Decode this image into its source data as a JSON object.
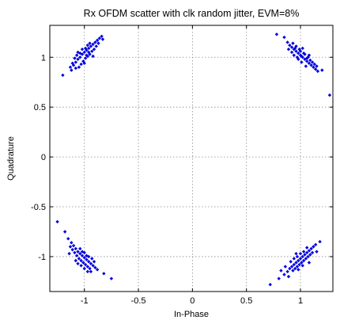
{
  "chart_data": {
    "type": "scatter",
    "title": "Rx OFDM scatter with clk random jitter, EVM=8%",
    "xlabel": "In-Phase",
    "ylabel": "Quadrature",
    "xlim": [
      -1.32,
      1.3
    ],
    "ylim": [
      -1.35,
      1.32
    ],
    "xticks": [
      -1,
      -0.5,
      0,
      0.5,
      1
    ],
    "xtick_labels": [
      "-1",
      "-0.5",
      "0",
      "0.5",
      "1"
    ],
    "yticks": [
      -1,
      -0.5,
      0,
      0.5,
      1
    ],
    "ytick_labels": [
      "-1",
      "-0.5",
      "0",
      "0.5",
      "1"
    ],
    "grid": true,
    "marker_color": "#0000e0",
    "series": [
      {
        "points": [
          [
            -1.2,
            0.82
          ],
          [
            -1.12,
            0.87
          ],
          [
            -1.1,
            0.92
          ],
          [
            -1.08,
            0.95
          ],
          [
            -1.06,
            0.98
          ],
          [
            -1.04,
            1.0
          ],
          [
            -1.02,
            1.03
          ],
          [
            -1.0,
            1.05
          ],
          [
            -0.98,
            1.07
          ],
          [
            -0.96,
            1.09
          ],
          [
            -0.94,
            1.11
          ],
          [
            -0.92,
            1.13
          ],
          [
            -0.9,
            1.15
          ],
          [
            -0.88,
            1.17
          ],
          [
            -0.86,
            1.19
          ],
          [
            -0.84,
            1.21
          ],
          [
            -0.83,
            1.18
          ],
          [
            -1.05,
            0.9
          ],
          [
            -1.03,
            0.93
          ],
          [
            -1.01,
            0.96
          ],
          [
            -0.99,
            0.99
          ],
          [
            -0.97,
            1.01
          ],
          [
            -0.95,
            1.03
          ],
          [
            -0.93,
            1.06
          ],
          [
            -1.09,
            0.99
          ],
          [
            -1.07,
            1.02
          ],
          [
            -1.02,
            1.08
          ],
          [
            -0.97,
            1.12
          ],
          [
            -0.91,
            1.08
          ],
          [
            -0.89,
            1.11
          ],
          [
            -1.11,
            0.94
          ],
          [
            -1.0,
            0.94
          ],
          [
            -0.98,
            1.02
          ],
          [
            -0.95,
            1.14
          ],
          [
            -0.87,
            1.14
          ],
          [
            -1.06,
            1.05
          ],
          [
            -1.04,
            1.04
          ],
          [
            -0.99,
            1.09
          ],
          [
            -0.96,
            1.05
          ],
          [
            -0.92,
            1.01
          ],
          [
            -1.08,
            0.89
          ],
          [
            -1.13,
            0.9
          ]
        ]
      },
      {
        "points": [
          [
            0.78,
            1.23
          ],
          [
            0.85,
            1.2
          ],
          [
            0.88,
            1.15
          ],
          [
            0.9,
            1.12
          ],
          [
            0.92,
            1.1
          ],
          [
            0.94,
            1.08
          ],
          [
            0.96,
            1.06
          ],
          [
            0.98,
            1.04
          ],
          [
            1.0,
            1.02
          ],
          [
            1.02,
            1.0
          ],
          [
            1.04,
            0.98
          ],
          [
            1.06,
            0.96
          ],
          [
            1.08,
            0.94
          ],
          [
            1.1,
            0.92
          ],
          [
            1.12,
            0.9
          ],
          [
            1.14,
            0.88
          ],
          [
            1.16,
            0.86
          ],
          [
            1.2,
            0.87
          ],
          [
            0.92,
            1.05
          ],
          [
            0.95,
            1.09
          ],
          [
            0.97,
            1.0
          ],
          [
            0.99,
            1.08
          ],
          [
            1.01,
            0.95
          ],
          [
            1.03,
            1.04
          ],
          [
            1.05,
            0.91
          ],
          [
            1.07,
            1.0
          ],
          [
            1.09,
            0.97
          ],
          [
            0.93,
            1.14
          ],
          [
            0.96,
            1.11
          ],
          [
            1.0,
            1.06
          ],
          [
            1.02,
            1.09
          ],
          [
            1.04,
            1.03
          ],
          [
            1.06,
            0.99
          ],
          [
            1.11,
            0.95
          ],
          [
            1.13,
            0.93
          ],
          [
            0.98,
            0.98
          ],
          [
            1.01,
            1.01
          ],
          [
            0.94,
            1.02
          ],
          [
            1.08,
            1.02
          ],
          [
            1.15,
            0.91
          ],
          [
            1.27,
            0.62
          ],
          [
            0.89,
            1.08
          ]
        ]
      },
      {
        "points": [
          [
            -1.25,
            -0.65
          ],
          [
            -1.18,
            -0.75
          ],
          [
            -1.15,
            -0.82
          ],
          [
            -1.12,
            -0.86
          ],
          [
            -1.1,
            -0.89
          ],
          [
            -1.08,
            -0.92
          ],
          [
            -1.06,
            -0.95
          ],
          [
            -1.04,
            -0.97
          ],
          [
            -1.02,
            -0.99
          ],
          [
            -1.0,
            -1.01
          ],
          [
            -0.98,
            -1.03
          ],
          [
            -0.96,
            -1.05
          ],
          [
            -0.94,
            -1.07
          ],
          [
            -0.92,
            -1.09
          ],
          [
            -0.9,
            -1.11
          ],
          [
            -0.88,
            -1.13
          ],
          [
            -0.82,
            -1.17
          ],
          [
            -0.75,
            -1.22
          ],
          [
            -1.09,
            -0.96
          ],
          [
            -1.07,
            -0.99
          ],
          [
            -1.05,
            -1.02
          ],
          [
            -1.03,
            -1.04
          ],
          [
            -1.01,
            -1.06
          ],
          [
            -0.99,
            -1.08
          ],
          [
            -0.97,
            -1.1
          ],
          [
            -0.95,
            -1.12
          ],
          [
            -1.11,
            -0.93
          ],
          [
            -1.04,
            -0.92
          ],
          [
            -1.02,
            -0.95
          ],
          [
            -1.0,
            -0.96
          ],
          [
            -0.98,
            -0.99
          ],
          [
            -0.96,
            -1.0
          ],
          [
            -0.93,
            -1.02
          ],
          [
            -1.06,
            -1.07
          ],
          [
            -1.0,
            -1.12
          ],
          [
            -0.97,
            -1.15
          ],
          [
            -1.13,
            -0.9
          ],
          [
            -1.08,
            -1.04
          ],
          [
            -0.94,
            -1.15
          ],
          [
            -0.91,
            -1.05
          ],
          [
            -1.03,
            -1.09
          ],
          [
            -1.14,
            -0.97
          ]
        ]
      },
      {
        "points": [
          [
            0.72,
            -1.28
          ],
          [
            0.8,
            -1.22
          ],
          [
            0.85,
            -1.18
          ],
          [
            0.88,
            -1.15
          ],
          [
            0.9,
            -1.12
          ],
          [
            0.92,
            -1.1
          ],
          [
            0.94,
            -1.08
          ],
          [
            0.96,
            -1.06
          ],
          [
            0.98,
            -1.04
          ],
          [
            1.0,
            -1.02
          ],
          [
            1.02,
            -1.0
          ],
          [
            1.04,
            -0.98
          ],
          [
            1.06,
            -0.96
          ],
          [
            1.08,
            -0.94
          ],
          [
            1.1,
            -0.92
          ],
          [
            1.12,
            -0.9
          ],
          [
            1.14,
            -0.88
          ],
          [
            1.18,
            -0.85
          ],
          [
            0.93,
            -1.14
          ],
          [
            0.95,
            -1.12
          ],
          [
            0.97,
            -1.1
          ],
          [
            0.99,
            -1.08
          ],
          [
            1.01,
            -1.06
          ],
          [
            1.03,
            -1.04
          ],
          [
            1.05,
            -1.02
          ],
          [
            1.07,
            -1.0
          ],
          [
            0.91,
            -1.05
          ],
          [
            0.94,
            -1.02
          ],
          [
            0.97,
            -1.0
          ],
          [
            1.0,
            -0.97
          ],
          [
            1.03,
            -0.95
          ],
          [
            1.06,
            -0.91
          ],
          [
            1.09,
            -0.98
          ],
          [
            0.89,
            -1.2
          ],
          [
            0.86,
            -1.1
          ],
          [
            1.11,
            -0.96
          ],
          [
            0.98,
            -1.13
          ],
          [
            1.02,
            -1.09
          ],
          [
            1.08,
            -1.06
          ],
          [
            0.82,
            -1.14
          ],
          [
            0.96,
            -0.97
          ],
          [
            1.15,
            -0.95
          ]
        ]
      }
    ]
  }
}
